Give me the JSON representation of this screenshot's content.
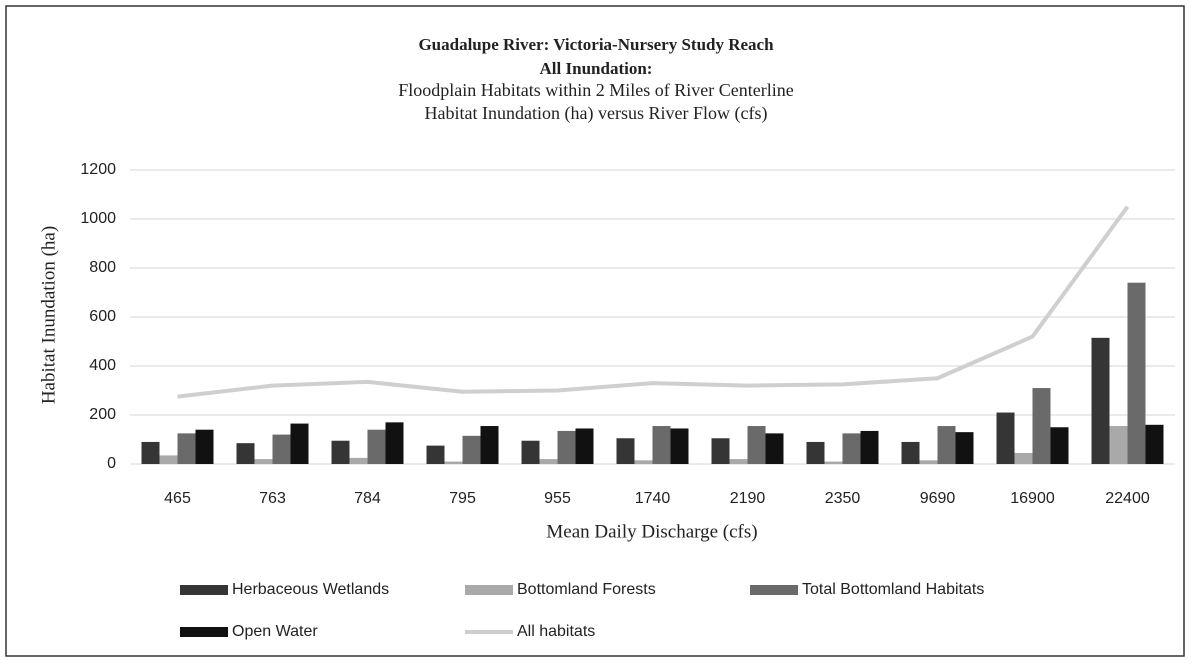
{
  "chart_data": {
    "type": "bar",
    "title": [
      "Guadalupe River: Victoria-Nursery Study Reach",
      "All Inundation:"
    ],
    "subtitle": [
      "Floodplain Habitats within 2 Miles of River Centerline",
      "Habitat Inundation (ha) versus River Flow (cfs)"
    ],
    "x_label": "Mean Daily Discharge (cfs)",
    "y_label": "Habitat Inundation (ha)",
    "categories": [
      "465",
      "763",
      "784",
      "795",
      "955",
      "1740",
      "2190",
      "2350",
      "9690",
      "16900",
      "22400"
    ],
    "series": [
      {
        "name": "Herbaceous Wetlands",
        "color": "#353535",
        "values": [
          90,
          85,
          95,
          75,
          95,
          105,
          105,
          90,
          90,
          210,
          515
        ]
      },
      {
        "name": "Bottomland Forests",
        "color": "#a9a9a9",
        "values": [
          35,
          20,
          25,
          10,
          20,
          15,
          20,
          10,
          15,
          45,
          155
        ]
      },
      {
        "name": "Total Bottomland Habitats",
        "color": "#6a6a6a",
        "values": [
          125,
          120,
          140,
          115,
          135,
          155,
          155,
          125,
          155,
          310,
          740
        ]
      },
      {
        "name": "Open Water",
        "color": "#111111",
        "values": [
          140,
          165,
          170,
          155,
          145,
          145,
          125,
          135,
          130,
          150,
          160
        ]
      },
      {
        "name": "All habitats",
        "color": "#cfcfcf",
        "type": "line",
        "values": [
          275,
          320,
          335,
          295,
          300,
          330,
          320,
          325,
          350,
          520,
          1050
        ]
      }
    ],
    "ylim": [
      0,
      1200
    ],
    "yticks": [
      0,
      200,
      400,
      600,
      800,
      1000,
      1200
    ],
    "grid": true,
    "legend": "bottom"
  }
}
